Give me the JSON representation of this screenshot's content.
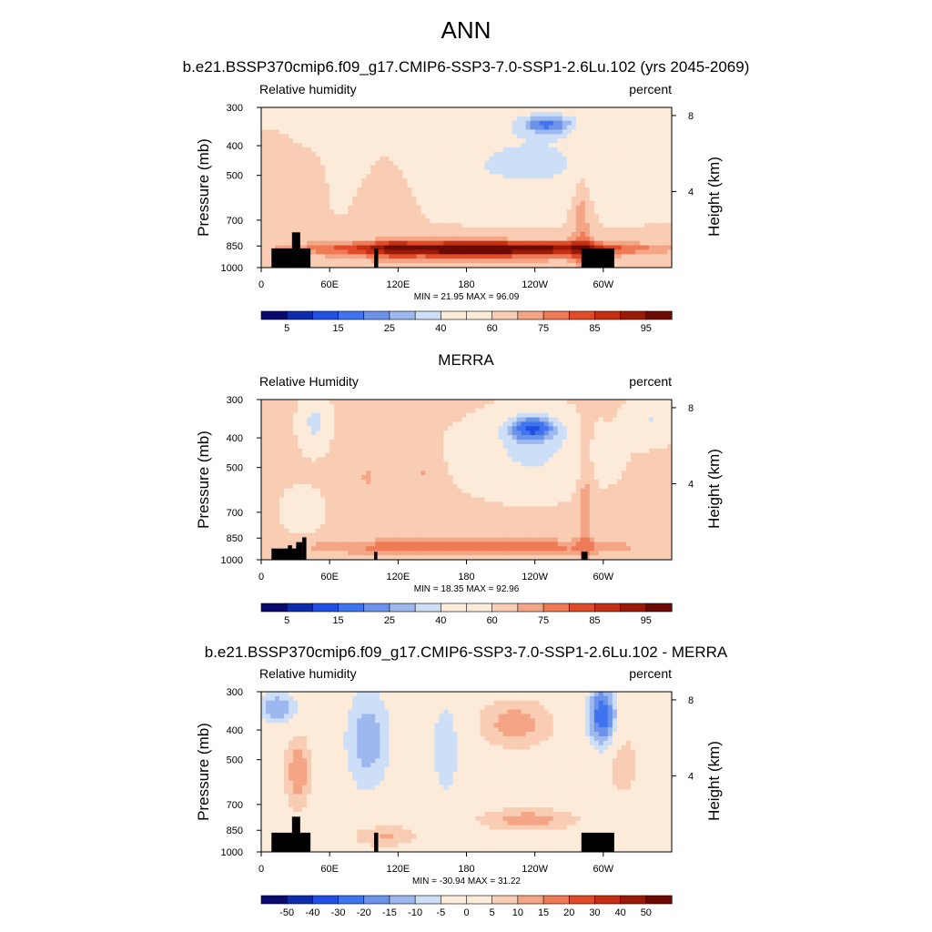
{
  "page": {
    "main_title": "ANN",
    "model_title": "b.e21.BSSP370cmip6.f09_g17.CMIP6-SSP3-7.0-SSP1-2.6Lu.102 (yrs 2045-2069)",
    "obs_title": "MERRA",
    "diff_title": "b.e21.BSSP370cmip6.f09_g17.CMIP6-SSP3-7.0-SSP1-2.6Lu.102 - MERRA"
  },
  "colors": {
    "black": "#000000",
    "contour_palette": [
      "#0a0a6e",
      "#0c2cab",
      "#1f4fe3",
      "#3f74ef",
      "#6c93ea",
      "#9db8ee",
      "#cddff6",
      "#fdebd9",
      "#f9cdb4",
      "#f4a585",
      "#ee7a56",
      "#e04c2a",
      "#c42e12",
      "#9a1a07",
      "#6b0b03"
    ]
  },
  "chart_data": [
    {
      "type": "heatmap",
      "panel": "model",
      "left_label": "Relative humidity",
      "right_label": "percent",
      "ylabel": "Pressure (mb)",
      "right_axis_label": "Height (km)",
      "x_ticks": [
        "0",
        "60E",
        "120E",
        "180",
        "120W",
        "60W"
      ],
      "y_ticks": [
        300,
        400,
        500,
        700,
        850,
        1000
      ],
      "height_ticks": [
        8,
        4
      ],
      "min": 21.95,
      "max": 96.09,
      "minmax_text": "MIN =  21.95  MAX =  96.09",
      "colorbar_labels": [
        "5",
        "15",
        "25",
        "40",
        "60",
        "75",
        "85",
        "95"
      ],
      "colorbar_bins": 16
    },
    {
      "type": "heatmap",
      "panel": "obs",
      "left_label": "Relative Humidity",
      "right_label": "percent",
      "ylabel": "Pressure (mb)",
      "right_axis_label": "Height (km)",
      "x_ticks": [
        "0",
        "60E",
        "120E",
        "180",
        "120W",
        "60W"
      ],
      "y_ticks": [
        300,
        400,
        500,
        700,
        850,
        1000
      ],
      "height_ticks": [
        8,
        4
      ],
      "min": 18.35,
      "max": 92.96,
      "minmax_text": "MIN =  18.35  MAX =  92.96",
      "colorbar_labels": [
        "5",
        "15",
        "25",
        "40",
        "60",
        "75",
        "85",
        "95"
      ],
      "colorbar_bins": 16
    },
    {
      "type": "heatmap",
      "panel": "diff",
      "left_label": "Relative humidity",
      "right_label": "percent",
      "ylabel": "Pressure (mb)",
      "right_axis_label": "Height (km)",
      "x_ticks": [
        "0",
        "60E",
        "120E",
        "180",
        "120W",
        "60W"
      ],
      "y_ticks": [
        300,
        400,
        500,
        700,
        850,
        1000
      ],
      "height_ticks": [
        8,
        4
      ],
      "min": -30.94,
      "max": 31.22,
      "minmax_text": "MIN = -30.94  MAX =  31.22",
      "colorbar_labels": [
        "-50",
        "-40",
        "-30",
        "-20",
        "-15",
        "-10",
        "-5",
        "0",
        "5",
        "10",
        "15",
        "20",
        "30",
        "40",
        "50"
      ],
      "colorbar_bins": 16
    }
  ]
}
